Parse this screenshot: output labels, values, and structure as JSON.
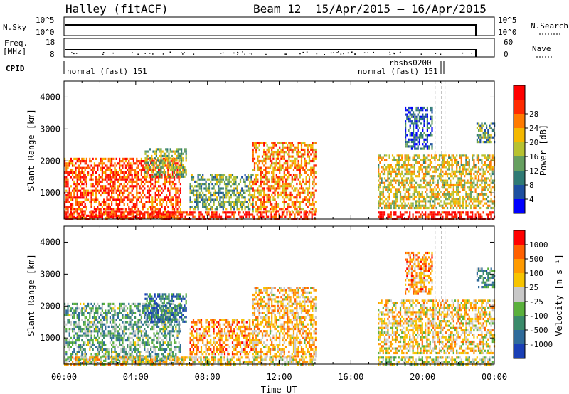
{
  "header": {
    "station": "Halley (fitACF)",
    "beam": "Beam 12",
    "date_range": "15/Apr/2015 – 16/Apr/2015"
  },
  "panels": {
    "nsky": {
      "left_label": "N.Sky",
      "right_label": "N.Search",
      "left_top": "10^5",
      "left_bottom": "10^0",
      "right_top": "10^5",
      "right_bottom": "10^0"
    },
    "freq": {
      "left_label_1": "Freq.",
      "left_label_2": "[MHz]",
      "left_top": "18",
      "left_bottom": "8",
      "right_label": "Nave",
      "right_top": "60",
      "right_bottom": "0"
    },
    "cpid": {
      "label": "CPID",
      "mode_1": "normal (fast) 151",
      "mode_2": "normal (fast) 151",
      "mode_3": "rbsbs0200"
    }
  },
  "chart_data": [
    {
      "type": "heatmap",
      "name": "power",
      "ylabel": "Slant Range [km]",
      "xlabel": "",
      "y_ticks": [
        "1000",
        "2000",
        "3000",
        "4000"
      ],
      "ylim": [
        180,
        4500
      ],
      "x_ticks": [
        "",
        "",
        "",
        "",
        "",
        "",
        ""
      ],
      "xlim_hours": [
        0,
        24
      ],
      "colorbar": {
        "label": "Power [dB]",
        "ticks": [
          "4",
          "8",
          "12",
          "16",
          "20",
          "24",
          "28"
        ],
        "colors": [
          "#0000ff",
          "#1d4fa0",
          "#2f7a74",
          "#66a060",
          "#b7c230",
          "#f4b800",
          "#ff7a00",
          "#ff2a00",
          "#ff0000"
        ]
      },
      "echo_regions": [
        {
          "t0": 0.0,
          "t1": 6.5,
          "r0": 200,
          "r1": 2100,
          "level": 0.82
        },
        {
          "t0": 0.0,
          "t1": 14.0,
          "r0": 200,
          "r1": 420,
          "level": 0.9
        },
        {
          "t0": 4.5,
          "t1": 6.8,
          "r0": 1500,
          "r1": 2400,
          "level": 0.45
        },
        {
          "t0": 7.0,
          "t1": 10.5,
          "r0": 500,
          "r1": 1600,
          "level": 0.4
        },
        {
          "t0": 10.5,
          "t1": 14.0,
          "r0": 400,
          "r1": 2600,
          "level": 0.7
        },
        {
          "t0": 17.5,
          "t1": 24.0,
          "r0": 200,
          "r1": 420,
          "level": 0.95
        },
        {
          "t0": 17.5,
          "t1": 24.0,
          "r0": 500,
          "r1": 2200,
          "level": 0.55
        },
        {
          "t0": 19.0,
          "t1": 20.5,
          "r0": 2400,
          "r1": 3700,
          "level": 0.2
        },
        {
          "t0": 23.0,
          "t1": 24.0,
          "r0": 2600,
          "r1": 3200,
          "level": 0.35
        }
      ]
    },
    {
      "type": "heatmap",
      "name": "velocity",
      "ylabel": "Slant Range [km]",
      "xlabel": "Time UT",
      "y_ticks": [
        "1000",
        "2000",
        "3000",
        "4000"
      ],
      "ylim": [
        180,
        4500
      ],
      "x_ticks": [
        "00:00",
        "04:00",
        "08:00",
        "12:00",
        "16:00",
        "20:00",
        "00:00"
      ],
      "xlim_hours": [
        0,
        24
      ],
      "colorbar": {
        "label": "Velocity [m s⁻¹]",
        "ticks": [
          "1000",
          "500",
          "100",
          "25",
          "-25",
          "-100",
          "-500",
          "-1000"
        ],
        "colors": [
          "#1a3fb5",
          "#2f6b9a",
          "#3a8a6a",
          "#5ab03c",
          "#c8c8c8",
          "#f7c400",
          "#ff9a00",
          "#ff6000",
          "#ff0000"
        ]
      },
      "echo_regions": [
        {
          "t0": 0.0,
          "t1": 6.5,
          "r0": 200,
          "r1": 2100,
          "level": 0.35
        },
        {
          "t0": 0.0,
          "t1": 14.0,
          "r0": 200,
          "r1": 420,
          "level": 0.6
        },
        {
          "t0": 4.5,
          "t1": 6.8,
          "r0": 1500,
          "r1": 2400,
          "level": 0.2
        },
        {
          "t0": 7.0,
          "t1": 10.5,
          "r0": 500,
          "r1": 1600,
          "level": 0.72
        },
        {
          "t0": 10.5,
          "t1": 14.0,
          "r0": 400,
          "r1": 2600,
          "level": 0.65
        },
        {
          "t0": 17.5,
          "t1": 24.0,
          "r0": 200,
          "r1": 420,
          "level": 0.5
        },
        {
          "t0": 17.5,
          "t1": 24.0,
          "r0": 500,
          "r1": 2200,
          "level": 0.6
        },
        {
          "t0": 19.0,
          "t1": 20.5,
          "r0": 2400,
          "r1": 3700,
          "level": 0.7
        },
        {
          "t0": 23.0,
          "t1": 24.0,
          "r0": 2600,
          "r1": 3200,
          "level": 0.3
        }
      ]
    }
  ]
}
